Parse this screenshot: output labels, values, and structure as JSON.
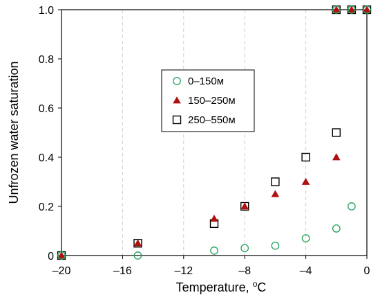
{
  "chart_data": {
    "type": "scatter",
    "xlabel": "Temperature, ",
    "xlabel_unit": "C",
    "xlabel_degree": "o",
    "ylabel": "Unfrozen water saturation",
    "xlim": [
      -20,
      0
    ],
    "ylim": [
      0,
      1.0
    ],
    "x_ticks": [
      -20,
      -16,
      -12,
      -8,
      -4,
      0
    ],
    "x_tick_labels": [
      "–20",
      "–16",
      "–12",
      "–8",
      "–4",
      "0"
    ],
    "y_ticks": [
      0,
      0.2,
      0.4,
      0.6,
      0.8,
      1.0
    ],
    "y_tick_labels": [
      "0",
      "0.2",
      "0.4",
      "0.6",
      "0.8",
      "1.0"
    ],
    "grid": "vertical dashed at x ticks",
    "legend_position": "center-left",
    "series": [
      {
        "name": "0–150м",
        "marker": "open-circle",
        "color": "#22a05a",
        "points": [
          [
            -20,
            0.0
          ],
          [
            -15,
            0.0
          ],
          [
            -10,
            0.02
          ],
          [
            -8,
            0.03
          ],
          [
            -6,
            0.04
          ],
          [
            -4,
            0.07
          ],
          [
            -2,
            0.11
          ],
          [
            -1,
            0.2
          ],
          [
            -2,
            1.0
          ],
          [
            -1,
            1.0
          ],
          [
            0,
            1.0
          ]
        ]
      },
      {
        "name": "150–250м",
        "marker": "filled-triangle",
        "color": "#b01010",
        "points": [
          [
            -20,
            0.0
          ],
          [
            -15,
            0.05
          ],
          [
            -10,
            0.15
          ],
          [
            -8,
            0.2
          ],
          [
            -6,
            0.25
          ],
          [
            -4,
            0.3
          ],
          [
            -2,
            0.4
          ],
          [
            -2,
            1.0
          ],
          [
            -1,
            1.0
          ],
          [
            0,
            1.0
          ]
        ]
      },
      {
        "name": "250–550м",
        "marker": "open-square",
        "color": "#000000",
        "points": [
          [
            -20,
            0.0
          ],
          [
            -15,
            0.05
          ],
          [
            -10,
            0.13
          ],
          [
            -8,
            0.2
          ],
          [
            -6,
            0.3
          ],
          [
            -4,
            0.4
          ],
          [
            -2,
            0.5
          ],
          [
            -2,
            1.0
          ],
          [
            -1,
            1.0
          ],
          [
            0,
            1.0
          ]
        ]
      }
    ]
  }
}
